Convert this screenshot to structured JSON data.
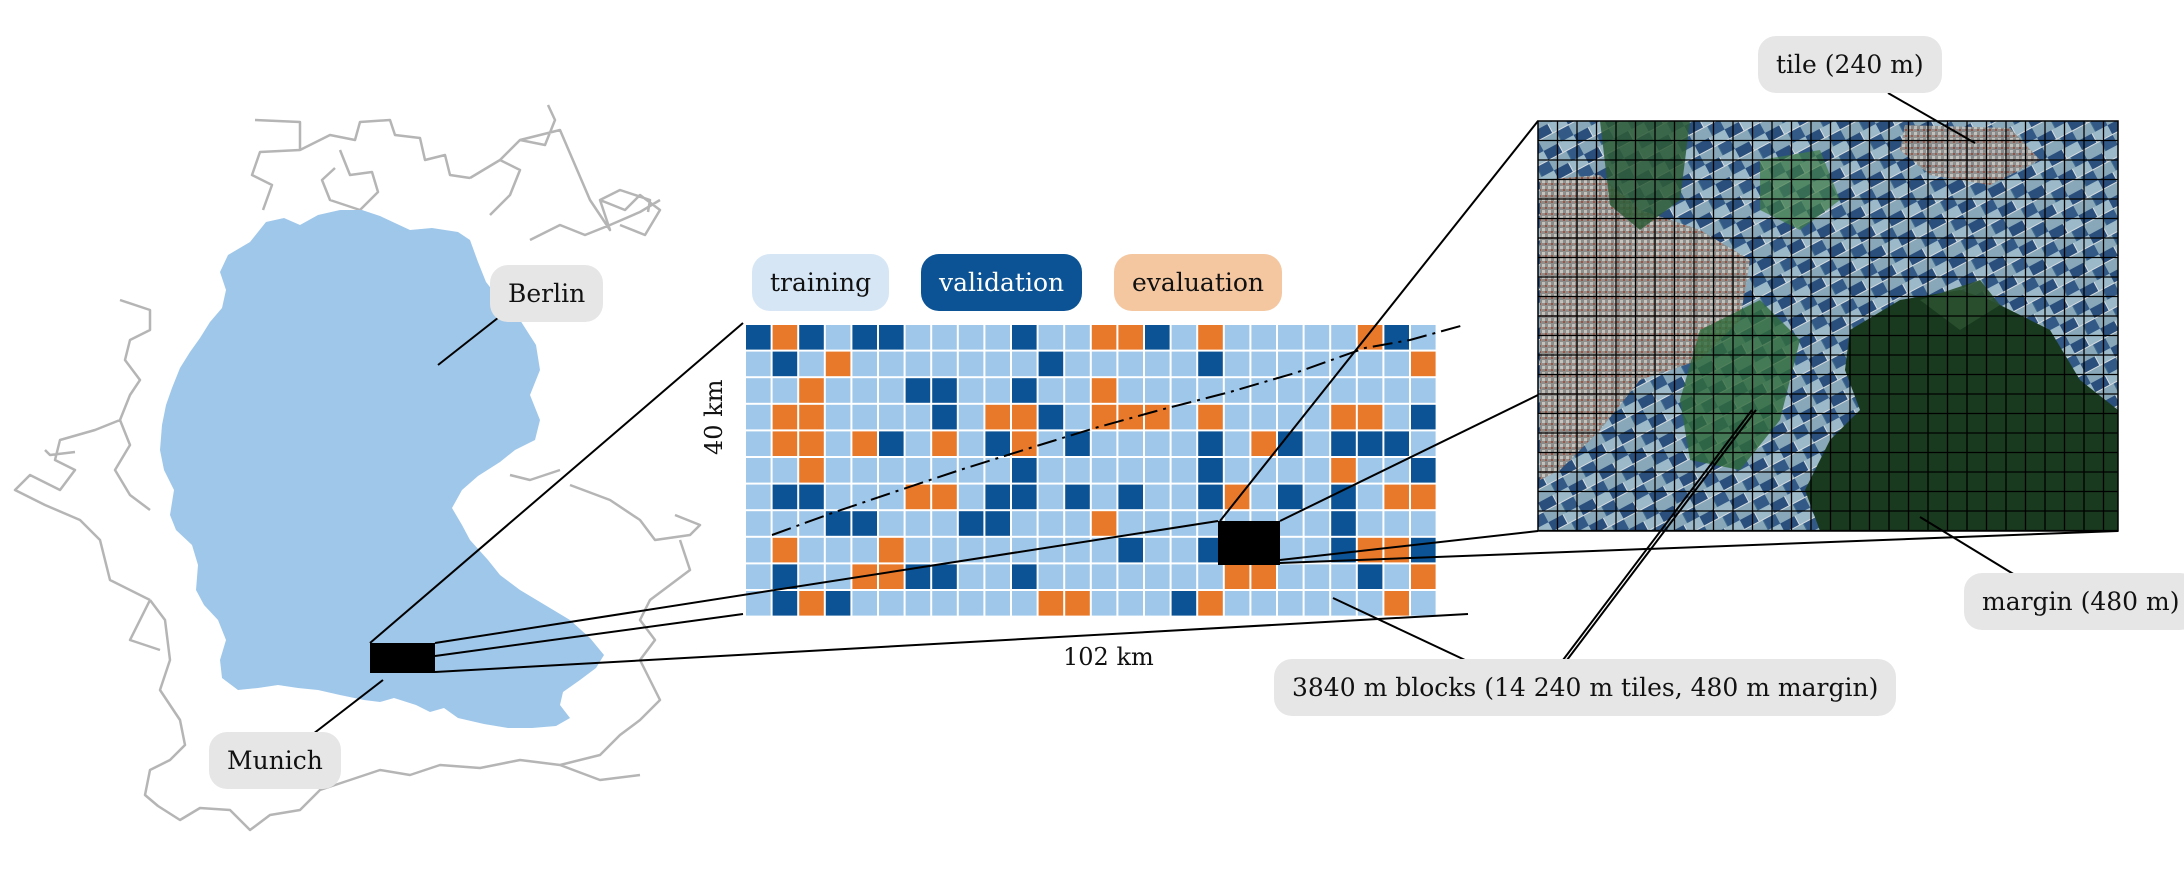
{
  "legend": [
    {
      "label": "training",
      "bg": "#d6e6f5",
      "fg": "#111111"
    },
    {
      "label": "validation",
      "bg": "#0b5394",
      "fg": "#ffffff"
    },
    {
      "label": "evaluation",
      "bg": "#f4c7a1",
      "fg": "#111111"
    }
  ],
  "labels": {
    "berlin": "Berlin",
    "munich": "Munich",
    "height": "40 km",
    "width": "102 km",
    "blocks": "3840 m blocks (14 240 m tiles, 480 m margin)",
    "tile": "tile (240 m)",
    "margin": "margin (480 m)"
  },
  "colors": {
    "training": "#9fc7ea",
    "validation": "#0b5394",
    "evaluation": "#e8792a",
    "country": "#9fc7ea",
    "borders": "#b5b5b5"
  },
  "block_grid": {
    "legend_codes": {
      "T": "training",
      "V": "validation",
      "E": "evaluation"
    },
    "rows": [
      "VEVTVVTTTTVTTEEVTETTTTTEVT",
      "TVTETTTTTTTVTTTTTVTTTTTTTE",
      "TTETTTVVTTVTTETTTTTTTTTTTT",
      "TEETTTTVTEEVTEEETETTTTEETV",
      "TEETEVTETVETVTTTTVTEVTVVVT",
      "TTETTTTTTTVTTTTTTVTTTTETTV",
      "TVVTTTEETVVTVTVTTVETVTVTEE",
      "TTTVVTTTVVTTTETTTTTTTTVTTT",
      "TETTTETTTTTTTTVTTVETTTVEEV",
      "TVTTEEVVTTVTTTTTTTEETTTVTE",
      "TVEVTTTTTTTEETTTVETTTTTTET"
    ]
  }
}
